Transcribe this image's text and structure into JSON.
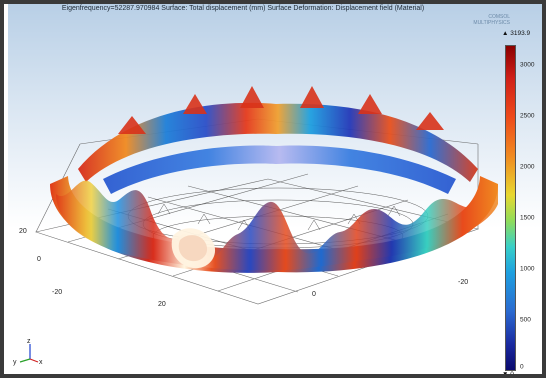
{
  "plot": {
    "title": "Eigenfrequency=52287.970984  Surface: Total displacement (mm)  Surface Deformation: Displacement field (Material)",
    "brand_line1": "COMSOL",
    "brand_line2": "MULTIPHYSICS"
  },
  "axes": {
    "left_ticks": [
      "20",
      "0",
      "-20"
    ],
    "front_ticks": [
      "20",
      "0",
      "-20"
    ],
    "triad": {
      "z": "z",
      "y": "y",
      "x": "x"
    }
  },
  "colorbar": {
    "max_label": "▲ 3193.9",
    "min_label": "▼ 0",
    "ticks": [
      "3000",
      "2500",
      "2000",
      "1500",
      "1000",
      "500",
      "0"
    ],
    "range": [
      0,
      3193.9
    ],
    "colors": {
      "high": "#d02018",
      "mid": "#e8d830",
      "low": "#1a2aa0"
    }
  }
}
